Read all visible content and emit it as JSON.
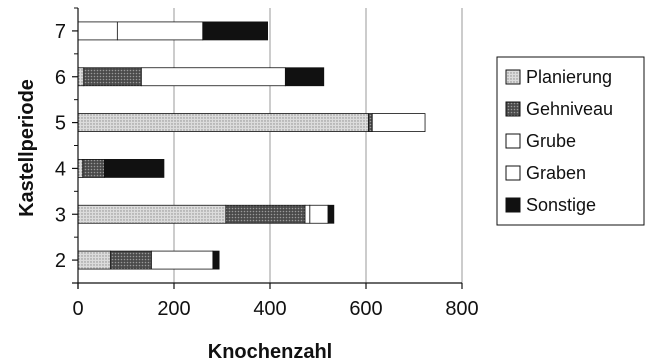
{
  "chart_data": {
    "type": "bar",
    "orientation": "horizontal",
    "stacked": true,
    "xlabel": "Knochenzahl",
    "ylabel": "Kastellperiode",
    "xlim": [
      0,
      800
    ],
    "x_ticks": [
      0,
      200,
      400,
      600,
      800
    ],
    "categories": [
      "2",
      "3",
      "4",
      "5",
      "6",
      "7"
    ],
    "series": [
      {
        "name": "Planierung",
        "values": [
          68,
          308,
          10,
          605,
          12,
          0
        ],
        "color": "#d0d0d0",
        "pattern": "dots-light"
      },
      {
        "name": "Gehniveau",
        "values": [
          85,
          165,
          45,
          8,
          120,
          0
        ],
        "color": "#5a5a5a",
        "pattern": "dots-dark"
      },
      {
        "name": "Grube",
        "values": [
          0,
          10,
          0,
          0,
          0,
          82
        ],
        "color": "#ffffff"
      },
      {
        "name": "Graben",
        "values": [
          128,
          38,
          0,
          110,
          300,
          178
        ],
        "color": "#ffffff"
      },
      {
        "name": "Sonstige",
        "values": [
          13,
          12,
          124,
          0,
          80,
          135
        ],
        "color": "#111111"
      }
    ],
    "grid": "vertical",
    "legend": "right"
  }
}
